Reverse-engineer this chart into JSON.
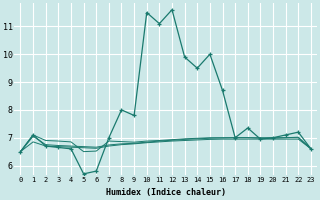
{
  "xlabel": "Humidex (Indice chaleur)",
  "bg_color": "#cce8e8",
  "grid_color": "#ffffff",
  "line_color": "#1a7a6e",
  "xlim": [
    -0.5,
    23.5
  ],
  "ylim": [
    5.65,
    11.85
  ],
  "x_ticks": [
    0,
    1,
    2,
    3,
    4,
    5,
    6,
    7,
    8,
    9,
    10,
    11,
    12,
    13,
    14,
    15,
    16,
    17,
    18,
    19,
    20,
    21,
    22,
    23
  ],
  "y_ticks": [
    6,
    7,
    8,
    9,
    10,
    11
  ],
  "series": [
    [
      6.5,
      7.1,
      6.7,
      6.65,
      6.6,
      5.7,
      5.8,
      7.0,
      8.0,
      7.8,
      11.5,
      11.1,
      11.6,
      9.9,
      9.5,
      10.0,
      8.7,
      7.0,
      7.35,
      6.95,
      7.0,
      7.1,
      7.2,
      6.6
    ],
    [
      6.5,
      6.85,
      6.7,
      6.68,
      6.66,
      6.64,
      6.62,
      6.7,
      6.75,
      6.78,
      6.82,
      6.85,
      6.88,
      6.9,
      6.92,
      6.94,
      6.95,
      6.95,
      6.95,
      6.95,
      6.95,
      6.95,
      6.95,
      6.6
    ],
    [
      6.5,
      7.05,
      6.75,
      6.72,
      6.7,
      6.68,
      6.66,
      6.74,
      6.78,
      6.8,
      6.84,
      6.88,
      6.91,
      6.94,
      6.96,
      6.98,
      6.99,
      7.0,
      7.0,
      7.0,
      7.0,
      7.0,
      7.0,
      6.6
    ],
    [
      6.5,
      7.1,
      6.9,
      6.88,
      6.85,
      6.5,
      6.52,
      6.88,
      6.86,
      6.84,
      6.88,
      6.9,
      6.93,
      6.96,
      6.98,
      7.0,
      7.0,
      7.0,
      7.0,
      6.98,
      6.98,
      7.0,
      7.02,
      6.6
    ]
  ]
}
